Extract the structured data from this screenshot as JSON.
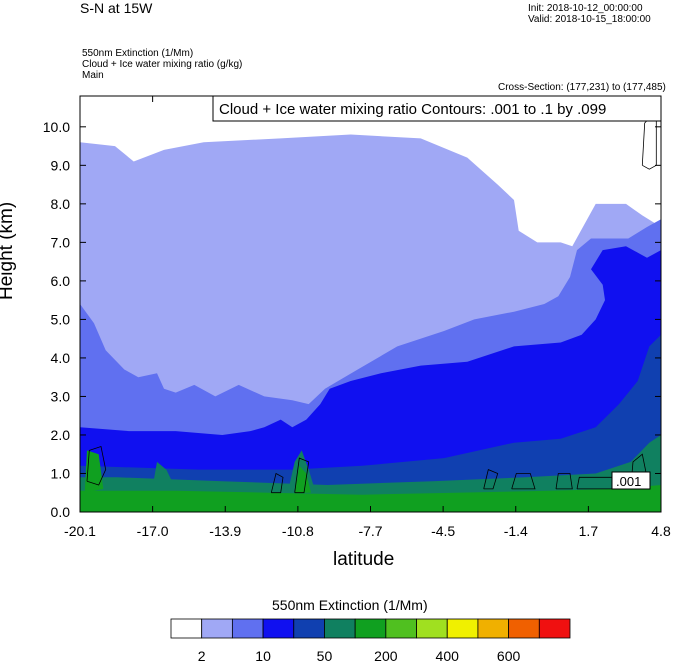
{
  "header": {
    "title": "S-N at 15W",
    "init": "Init: 2018-10-12_00:00:00",
    "valid": "Valid: 2018-10-15_18:00:00",
    "field1": "550nm Extinction   (1/Mm)",
    "field2": "Cloud + Ice water mixing ratio   (g/kg)",
    "field3": "Main",
    "cross_section": "Cross-Section: (177,231) to (177,485)"
  },
  "chart_data": {
    "type": "heatmap",
    "title": "S-N at 15W",
    "xlabel": "latitude",
    "ylabel": "Height (km)",
    "xlim": [
      -20.1,
      4.8
    ],
    "ylim": [
      0.0,
      10.8
    ],
    "x_ticks": [
      "-20.1",
      "-17.0",
      "-13.9",
      "-10.8",
      "-7.7",
      "-4.5",
      "-1.4",
      "1.7",
      "4.8"
    ],
    "y_ticks": [
      "0.0",
      "1.0",
      "2.0",
      "3.0",
      "4.0",
      "5.0",
      "6.0",
      "7.0",
      "8.0",
      "9.0",
      "10.0"
    ],
    "contour_label": "Cloud + Ice water mixing ratio Contours: .001 to .1 by .099",
    "contour_value_label": ".001",
    "colorbar": {
      "title": "550nm Extinction  (1/Mm)",
      "labels": [
        "2",
        "10",
        "50",
        "200",
        "400",
        "600"
      ],
      "colors": [
        "#ffffff",
        "#a0a8f5",
        "#6070f0",
        "#1010f0",
        "#1040b0",
        "#108060",
        "#10a020",
        "#50c020",
        "#a0e020",
        "#f0f000",
        "#f0b000",
        "#f06000",
        "#f01010"
      ]
    },
    "regions": [
      {
        "level": 1,
        "poly": [
          [
            -20.1,
            0.0
          ],
          [
            -20.1,
            9.6
          ],
          [
            -18.6,
            9.5
          ],
          [
            -17.8,
            9.1
          ],
          [
            -16.5,
            9.4
          ],
          [
            -14.8,
            9.6
          ],
          [
            -11.5,
            9.7
          ],
          [
            -8.5,
            9.8
          ],
          [
            -5.5,
            9.7
          ],
          [
            -3.5,
            9.2
          ],
          [
            -2.2,
            8.5
          ],
          [
            -1.5,
            8.1
          ],
          [
            -1.3,
            7.3
          ],
          [
            -0.5,
            7.0
          ],
          [
            0.5,
            7.0
          ],
          [
            1.0,
            6.9
          ],
          [
            2.0,
            8.0
          ],
          [
            3.3,
            8.0
          ],
          [
            4.0,
            7.7
          ],
          [
            4.8,
            7.4
          ],
          [
            4.8,
            0.0
          ]
        ]
      },
      {
        "level": 2,
        "poly": [
          [
            -20.1,
            0.0
          ],
          [
            -20.1,
            5.4
          ],
          [
            -19.5,
            4.9
          ],
          [
            -19.0,
            4.2
          ],
          [
            -18.2,
            3.7
          ],
          [
            -17.6,
            3.5
          ],
          [
            -16.8,
            3.6
          ],
          [
            -16.5,
            3.2
          ],
          [
            -16.0,
            3.1
          ],
          [
            -15.2,
            3.3
          ],
          [
            -14.3,
            3.0
          ],
          [
            -13.3,
            3.3
          ],
          [
            -12.2,
            3.0
          ],
          [
            -11.0,
            2.9
          ],
          [
            -10.3,
            2.8
          ],
          [
            -9.6,
            3.2
          ],
          [
            -8.2,
            3.7
          ],
          [
            -6.5,
            4.3
          ],
          [
            -4.5,
            4.7
          ],
          [
            -3.2,
            5.0
          ],
          [
            -1.5,
            5.2
          ],
          [
            -0.2,
            5.4
          ],
          [
            0.4,
            5.6
          ],
          [
            0.9,
            6.1
          ],
          [
            1.2,
            6.8
          ],
          [
            1.8,
            7.1
          ],
          [
            2.6,
            7.1
          ],
          [
            3.4,
            7.1
          ],
          [
            4.2,
            7.4
          ],
          [
            4.8,
            7.6
          ],
          [
            4.8,
            0.0
          ]
        ]
      },
      {
        "level": 3,
        "poly": [
          [
            -20.1,
            0.0
          ],
          [
            -20.1,
            2.2
          ],
          [
            -18.0,
            2.1
          ],
          [
            -16.0,
            2.1
          ],
          [
            -14.0,
            2.0
          ],
          [
            -12.8,
            2.1
          ],
          [
            -12.2,
            2.2
          ],
          [
            -11.5,
            2.4
          ],
          [
            -11.0,
            2.2
          ],
          [
            -10.4,
            2.4
          ],
          [
            -9.8,
            2.8
          ],
          [
            -9.4,
            3.2
          ],
          [
            -8.5,
            3.4
          ],
          [
            -7.2,
            3.6
          ],
          [
            -5.5,
            3.8
          ],
          [
            -3.5,
            3.9
          ],
          [
            -1.5,
            4.3
          ],
          [
            0.5,
            4.4
          ],
          [
            1.4,
            4.6
          ],
          [
            2.0,
            5.0
          ],
          [
            2.4,
            5.5
          ],
          [
            2.3,
            5.9
          ],
          [
            1.8,
            6.3
          ],
          [
            2.3,
            6.8
          ],
          [
            3.3,
            6.9
          ],
          [
            4.2,
            6.6
          ],
          [
            4.8,
            6.8
          ],
          [
            4.8,
            0.0
          ]
        ]
      },
      {
        "level": 4,
        "poly": [
          [
            -20.1,
            0.0
          ],
          [
            -20.1,
            1.2
          ],
          [
            -15.0,
            1.1
          ],
          [
            -11.0,
            1.1
          ],
          [
            -8.0,
            1.2
          ],
          [
            -4.5,
            1.4
          ],
          [
            -1.5,
            1.8
          ],
          [
            0.5,
            1.9
          ],
          [
            2.0,
            2.2
          ],
          [
            3.0,
            2.8
          ],
          [
            3.8,
            3.4
          ],
          [
            4.3,
            4.3
          ],
          [
            4.8,
            4.6
          ],
          [
            4.8,
            0.0
          ]
        ]
      },
      {
        "level": 5,
        "poly": [
          [
            -20.1,
            0.0
          ],
          [
            -20.1,
            0.9
          ],
          [
            -18.5,
            0.9
          ],
          [
            -14.0,
            0.8
          ],
          [
            -9.5,
            0.7
          ],
          [
            -5.0,
            0.8
          ],
          [
            -1.0,
            0.9
          ],
          [
            2.0,
            1.0
          ],
          [
            3.5,
            1.3
          ],
          [
            4.3,
            1.8
          ],
          [
            4.8,
            2.0
          ],
          [
            4.8,
            0.0
          ]
        ]
      },
      {
        "level": 6,
        "poly": [
          [
            -20.1,
            0.0
          ],
          [
            -20.1,
            0.55
          ],
          [
            -16.0,
            0.55
          ],
          [
            -12.0,
            0.5
          ],
          [
            -8.0,
            0.45
          ],
          [
            -4.0,
            0.5
          ],
          [
            0.0,
            0.55
          ],
          [
            3.0,
            0.6
          ],
          [
            4.8,
            0.7
          ],
          [
            4.8,
            0.0
          ]
        ]
      },
      {
        "level": 5,
        "poly": [
          [
            -11.2,
            0.5
          ],
          [
            -10.9,
            1.3
          ],
          [
            -10.6,
            1.6
          ],
          [
            -10.3,
            1.1
          ],
          [
            -10.0,
            0.5
          ]
        ]
      },
      {
        "level": 6,
        "poly": [
          [
            -10.9,
            0.5
          ],
          [
            -10.7,
            1.2
          ],
          [
            -10.4,
            1.0
          ],
          [
            -10.2,
            0.5
          ]
        ]
      },
      {
        "level": 6,
        "poly": [
          [
            -19.9,
            0.5
          ],
          [
            -19.8,
            1.6
          ],
          [
            -19.3,
            1.5
          ],
          [
            -19.1,
            0.6
          ]
        ]
      },
      {
        "level": 5,
        "poly": [
          [
            -17.0,
            0.6
          ],
          [
            -16.8,
            1.3
          ],
          [
            -16.4,
            1.1
          ],
          [
            -16.0,
            0.6
          ]
        ]
      }
    ],
    "contours": [
      [
        [
          -19.8,
          0.8
        ],
        [
          -19.7,
          1.6
        ],
        [
          -19.2,
          1.7
        ],
        [
          -19.0,
          1.1
        ],
        [
          -19.3,
          0.7
        ],
        [
          -19.8,
          0.8
        ]
      ],
      [
        [
          -11.9,
          0.5
        ],
        [
          -11.7,
          1.0
        ],
        [
          -11.4,
          0.9
        ],
        [
          -11.5,
          0.5
        ],
        [
          -11.9,
          0.5
        ]
      ],
      [
        [
          -10.9,
          0.5
        ],
        [
          -10.7,
          1.4
        ],
        [
          -10.3,
          1.3
        ],
        [
          -10.5,
          0.5
        ],
        [
          -10.9,
          0.5
        ]
      ],
      [
        [
          -2.8,
          0.6
        ],
        [
          -2.6,
          1.1
        ],
        [
          -2.2,
          1.0
        ],
        [
          -2.4,
          0.6
        ],
        [
          -2.8,
          0.6
        ]
      ],
      [
        [
          -1.6,
          0.6
        ],
        [
          -1.4,
          1.0
        ],
        [
          -0.8,
          1.0
        ],
        [
          -0.6,
          0.6
        ],
        [
          -1.6,
          0.6
        ]
      ],
      [
        [
          0.3,
          0.6
        ],
        [
          0.4,
          1.0
        ],
        [
          0.9,
          1.0
        ],
        [
          1.0,
          0.6
        ],
        [
          0.3,
          0.6
        ]
      ],
      [
        [
          1.2,
          0.6
        ],
        [
          1.3,
          0.9
        ],
        [
          3.0,
          0.9
        ],
        [
          3.1,
          0.6
        ],
        [
          1.2,
          0.6
        ]
      ],
      [
        [
          3.5,
          0.6
        ],
        [
          3.6,
          1.3
        ],
        [
          4.0,
          1.5
        ],
        [
          4.2,
          0.9
        ],
        [
          3.9,
          0.6
        ],
        [
          3.5,
          0.6
        ]
      ],
      [
        [
          4.0,
          9.0
        ],
        [
          4.1,
          10.1
        ],
        [
          4.6,
          10.4
        ],
        [
          4.6,
          9.0
        ],
        [
          4.3,
          8.9
        ],
        [
          4.0,
          9.0
        ]
      ]
    ]
  }
}
